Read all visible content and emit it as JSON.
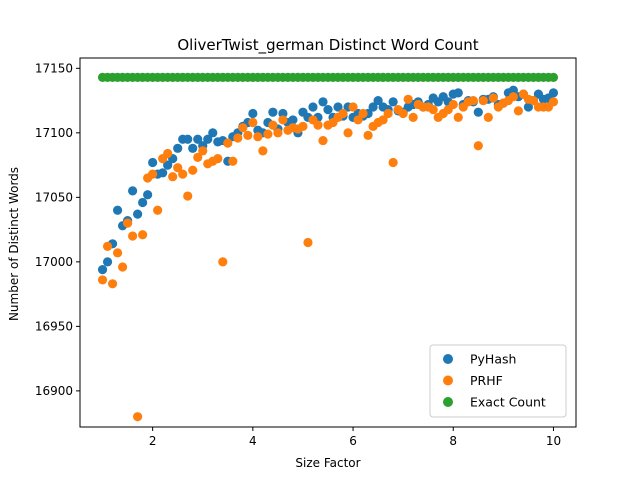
{
  "chart_data": {
    "type": "scatter",
    "title": "OliverTwist_german Distinct Word Count",
    "xlabel": "Size Factor",
    "ylabel": "Number of Distinct Words",
    "xlim": [
      0.55,
      10.45
    ],
    "ylim": [
      16872,
      17158
    ],
    "xticks": [
      2,
      4,
      6,
      8,
      10
    ],
    "yticks": [
      16900,
      16950,
      17000,
      17050,
      17100,
      17150
    ],
    "grid": false,
    "legend_position": "lower-right",
    "x": [
      1.0,
      1.1,
      1.2,
      1.3,
      1.4,
      1.5,
      1.6,
      1.7,
      1.8,
      1.9,
      2.0,
      2.1,
      2.2,
      2.3,
      2.4,
      2.5,
      2.6,
      2.7,
      2.8,
      2.9,
      3.0,
      3.1,
      3.2,
      3.3,
      3.4,
      3.5,
      3.6,
      3.7,
      3.8,
      3.9,
      4.0,
      4.1,
      4.2,
      4.3,
      4.4,
      4.5,
      4.6,
      4.7,
      4.8,
      4.9,
      5.0,
      5.1,
      5.2,
      5.3,
      5.4,
      5.5,
      5.6,
      5.7,
      5.8,
      5.9,
      6.0,
      6.1,
      6.2,
      6.3,
      6.4,
      6.5,
      6.6,
      6.7,
      6.8,
      6.9,
      7.0,
      7.1,
      7.2,
      7.3,
      7.4,
      7.5,
      7.6,
      7.7,
      7.8,
      7.9,
      8.0,
      8.1,
      8.2,
      8.3,
      8.4,
      8.5,
      8.6,
      8.7,
      8.8,
      8.9,
      9.0,
      9.1,
      9.2,
      9.3,
      9.4,
      9.5,
      9.6,
      9.7,
      9.8,
      9.9,
      10.0
    ],
    "series": [
      {
        "name": "PyHash",
        "color": "#1f77b4",
        "values": [
          16994,
          17000,
          17014,
          17040,
          17028,
          17032,
          17055,
          17037,
          17046,
          17052,
          17077,
          17068,
          17069,
          17075,
          17080,
          17088,
          17095,
          17095,
          17088,
          17095,
          17090,
          17095,
          17100,
          17093,
          17094,
          17078,
          17097,
          17100,
          17105,
          17108,
          17115,
          17102,
          17100,
          17108,
          17116,
          17103,
          17115,
          17108,
          17110,
          17100,
          17116,
          17112,
          17120,
          17112,
          17124,
          17118,
          17112,
          17120,
          17113,
          17120,
          17112,
          17115,
          17113,
          17115,
          17120,
          17125,
          17120,
          17118,
          17124,
          17117,
          17116,
          17120,
          17122,
          17124,
          17120,
          17122,
          17127,
          17124,
          17128,
          17124,
          17130,
          17131,
          17122,
          17125,
          17124,
          17116,
          17126,
          17126,
          17128,
          17122,
          17123,
          17131,
          17133,
          17128,
          17130,
          17120,
          17125,
          17130,
          17126,
          17127,
          17131
        ]
      },
      {
        "name": "PRHF",
        "color": "#ff7f0e",
        "values": [
          16986,
          17012,
          16983,
          17007,
          16996,
          17030,
          17020,
          16880,
          17021,
          17065,
          17068,
          17040,
          17080,
          17084,
          17066,
          17073,
          17068,
          17051,
          17071,
          17081,
          17086,
          17076,
          17078,
          17080,
          17000,
          17092,
          17078,
          17096,
          17104,
          17098,
          17108,
          17097,
          17086,
          17099,
          17106,
          17100,
          17110,
          17102,
          17104,
          17103,
          17105,
          17015,
          17110,
          17106,
          17094,
          17106,
          17108,
          17112,
          17115,
          17100,
          17120,
          17110,
          17115,
          17098,
          17105,
          17108,
          17110,
          17115,
          17077,
          17118,
          17115,
          17126,
          17112,
          17122,
          17120,
          17120,
          17118,
          17112,
          17115,
          17118,
          17122,
          17112,
          17120,
          17124,
          17125,
          17090,
          17125,
          17112,
          17127,
          17120,
          17123,
          17125,
          17128,
          17117,
          17130,
          17126,
          17125,
          17120,
          17120,
          17120,
          17124
        ]
      },
      {
        "name": "Exact Count",
        "color": "#2ca02c",
        "values": [
          17143,
          17143,
          17143,
          17143,
          17143,
          17143,
          17143,
          17143,
          17143,
          17143,
          17143,
          17143,
          17143,
          17143,
          17143,
          17143,
          17143,
          17143,
          17143,
          17143,
          17143,
          17143,
          17143,
          17143,
          17143,
          17143,
          17143,
          17143,
          17143,
          17143,
          17143,
          17143,
          17143,
          17143,
          17143,
          17143,
          17143,
          17143,
          17143,
          17143,
          17143,
          17143,
          17143,
          17143,
          17143,
          17143,
          17143,
          17143,
          17143,
          17143,
          17143,
          17143,
          17143,
          17143,
          17143,
          17143,
          17143,
          17143,
          17143,
          17143,
          17143,
          17143,
          17143,
          17143,
          17143,
          17143,
          17143,
          17143,
          17143,
          17143,
          17143,
          17143,
          17143,
          17143,
          17143,
          17143,
          17143,
          17143,
          17143,
          17143,
          17143,
          17143,
          17143,
          17143,
          17143,
          17143,
          17143,
          17143,
          17143,
          17143,
          17143
        ]
      }
    ]
  }
}
